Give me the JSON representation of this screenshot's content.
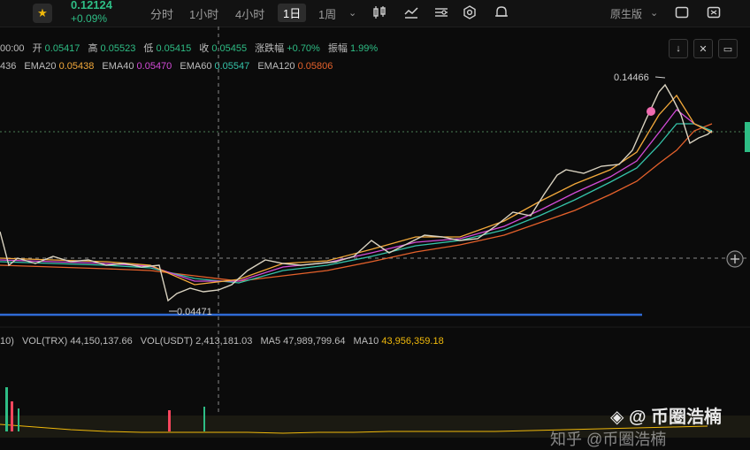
{
  "header": {
    "price": "0.12124",
    "change": "+0.09%",
    "timeframes": [
      "分时",
      "1小时",
      "4小时",
      "1日",
      "1周"
    ],
    "active_timeframe": "1日",
    "chart_style": "原生版"
  },
  "ohlc": {
    "time": "00:00",
    "open_label": "开",
    "open": "0.05417",
    "high_label": "高",
    "high": "0.05523",
    "low_label": "低",
    "low": "0.05415",
    "close_label": "收",
    "close": "0.05455",
    "change_label": "涨跌幅",
    "change": "+0.70%",
    "amplitude_label": "振幅",
    "amplitude": "1.99%"
  },
  "ema": {
    "first_value": "436",
    "items": [
      {
        "label": "EMA20",
        "value": "0.05438",
        "color": "#f3a93b"
      },
      {
        "label": "EMA40",
        "value": "0.05470",
        "color": "#d34bd8"
      },
      {
        "label": "EMA60",
        "value": "0.05547",
        "color": "#35c3a9"
      },
      {
        "label": "EMA120",
        "value": "0.05806",
        "color": "#e5612b"
      }
    ]
  },
  "annotations": {
    "high": "0.14466",
    "low": "0.04471"
  },
  "volume": {
    "prefix": "10)",
    "vol_trx_label": "VOL(TRX)",
    "vol_trx": "44,150,137.66",
    "vol_usdt_label": "VOL(USDT)",
    "vol_usdt": "2,413,181.03",
    "ma5_label": "MA5",
    "ma5": "47,989,799.64",
    "ma10_label": "MA10",
    "ma10": "43,956,359.18"
  },
  "watermarks": {
    "line1": "◈ @ 币圈浩楠",
    "line2": "知乎 @币圈浩楠"
  },
  "colors": {
    "up": "#2ebd85",
    "ma10": "#f0b90b",
    "support_line": "#2f6bd6"
  },
  "icons": [
    "star-icon",
    "candlestick-icon",
    "indicator-icon",
    "settings-icon",
    "drawing-icon",
    "alert-icon",
    "dropdown-icon",
    "fullscreen-icon",
    "window-icon",
    "download-icon",
    "shrink-icon",
    "layout-icon",
    "crosshair-plus-icon"
  ]
}
